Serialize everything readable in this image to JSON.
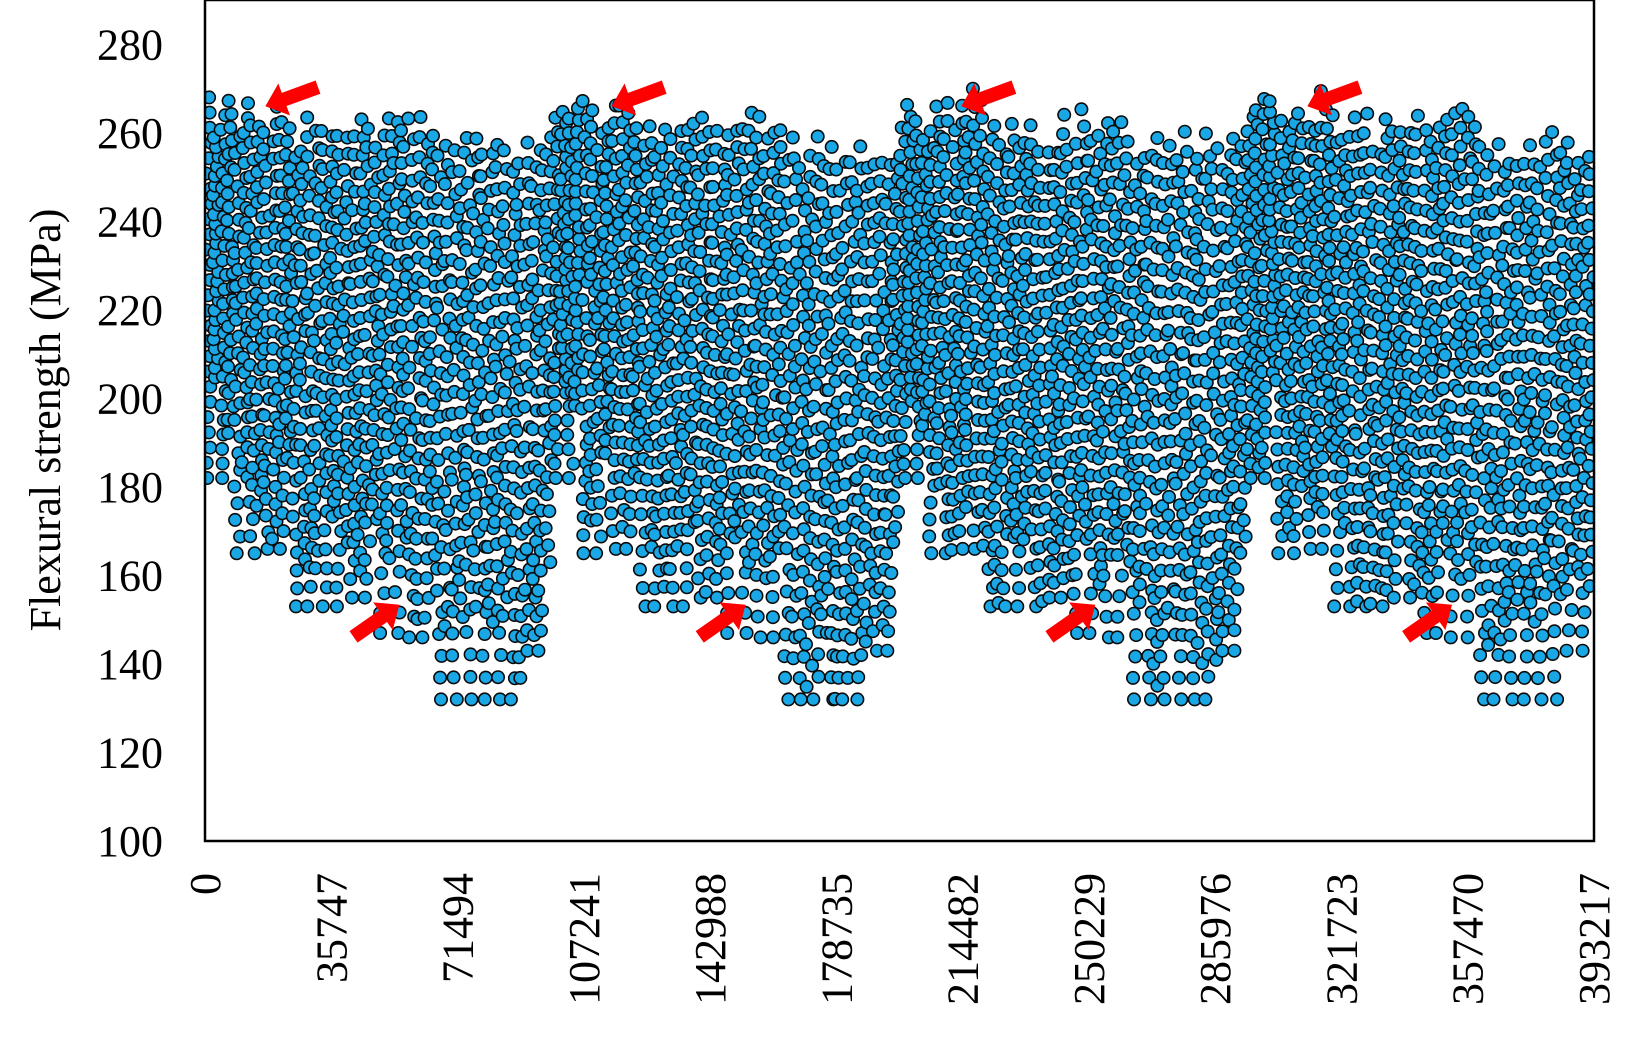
{
  "chart_data": {
    "type": "scatter",
    "title": "",
    "ylabel": "Flexural strength (MPa)",
    "xlabel": "",
    "xlim": [
      0,
      393217
    ],
    "ylim": [
      100,
      290
    ],
    "y_ticks": [
      100,
      120,
      140,
      160,
      180,
      200,
      220,
      240,
      260,
      280
    ],
    "x_ticks": [
      0,
      35747,
      71494,
      107241,
      142988,
      178735,
      214482,
      250229,
      285976,
      321723,
      357470,
      393217
    ],
    "x_tick_rotation": "vertical",
    "grid": false,
    "legend": "none",
    "marker_color": "#1aa7e6",
    "marker_edge_color": "#0a0a0a",
    "pattern": {
      "description_source": "dense periodic scatter; 4 repeating blocks of 98304 samples each",
      "block_length": 98304,
      "blocks": 4,
      "sub_blocks_per_block": 12,
      "sub_block_ranges": [
        {
          "x_start": 0,
          "x_end": 8192,
          "y_min": 182,
          "y_max": 268
        },
        {
          "x_start": 8192,
          "x_end": 16384,
          "y_min": 165,
          "y_max": 268
        },
        {
          "x_start": 16384,
          "x_end": 24576,
          "y_min": 166,
          "y_max": 270
        },
        {
          "x_start": 24576,
          "x_end": 32768,
          "y_min": 153,
          "y_max": 264
        },
        {
          "x_start": 32768,
          "x_end": 40960,
          "y_min": 153,
          "y_max": 265
        },
        {
          "x_start": 40960,
          "x_end": 49152,
          "y_min": 155,
          "y_max": 265
        },
        {
          "x_start": 49152,
          "x_end": 57344,
          "y_min": 147,
          "y_max": 266
        },
        {
          "x_start": 57344,
          "x_end": 65536,
          "y_min": 146,
          "y_max": 266
        },
        {
          "x_start": 65536,
          "x_end": 73728,
          "y_min": 132,
          "y_max": 260
        },
        {
          "x_start": 73728,
          "x_end": 81920,
          "y_min": 132,
          "y_max": 261
        },
        {
          "x_start": 81920,
          "x_end": 90112,
          "y_min": 132,
          "y_max": 261
        },
        {
          "x_start": 90112,
          "x_end": 98304,
          "y_min": 143,
          "y_max": 261
        }
      ]
    },
    "annotations": [
      {
        "type": "arrow",
        "direction": "down-left",
        "x": 24000,
        "y": 268
      },
      {
        "type": "arrow",
        "direction": "down-left",
        "x": 122000,
        "y": 268
      },
      {
        "type": "arrow",
        "direction": "down-left",
        "x": 221000,
        "y": 268
      },
      {
        "type": "arrow",
        "direction": "down-left",
        "x": 319000,
        "y": 268
      },
      {
        "type": "arrow",
        "direction": "up-right",
        "x": 49000,
        "y": 150
      },
      {
        "type": "arrow",
        "direction": "up-right",
        "x": 147000,
        "y": 150
      },
      {
        "type": "arrow",
        "direction": "up-right",
        "x": 246000,
        "y": 150
      },
      {
        "type": "arrow",
        "direction": "up-right",
        "x": 347000,
        "y": 150
      }
    ]
  }
}
